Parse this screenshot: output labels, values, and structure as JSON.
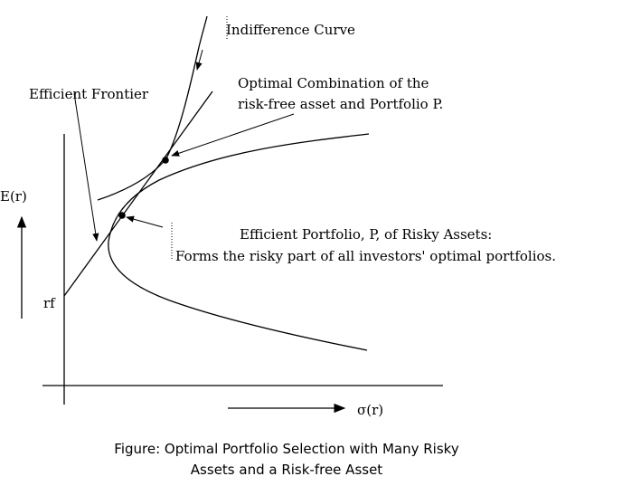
{
  "labels": {
    "indifference_curve": "Indifference Curve",
    "optimal_combination_line1": "Optimal Combination of the",
    "optimal_combination_line2": "risk-free asset and Portfolio P.",
    "efficient_frontier": "Efficient Frontier",
    "efficient_portfolio_line1": "Efficient Portfolio, P, of Risky Assets:",
    "efficient_portfolio_line2": "Forms the risky part of all investors' optimal portfolios.",
    "y_axis": "E(r)",
    "risk_free": "rf",
    "x_axis": "σ(r)"
  },
  "caption": {
    "line1": "Figure: Optimal Portfolio Selection with Many Risky",
    "line2": "Assets and a Risk-free Asset"
  },
  "colors": {
    "ink": "#000000",
    "background": "#ffffff"
  }
}
